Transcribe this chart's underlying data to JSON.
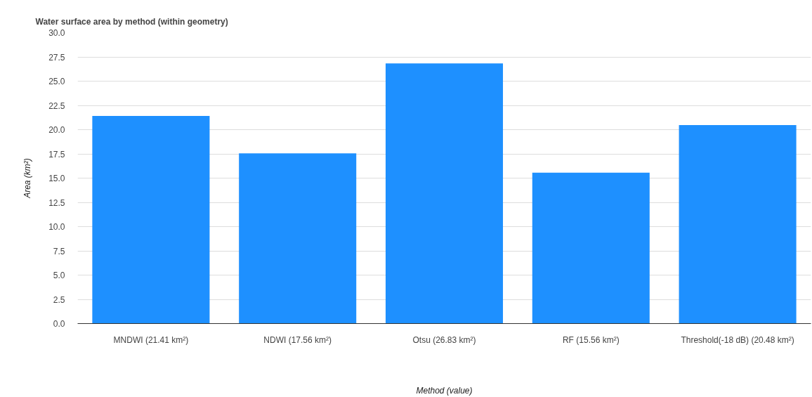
{
  "chart_data": {
    "type": "bar",
    "title": "Water surface area by method (within geometry)",
    "xlabel": "Method (value)",
    "ylabel": "Area (km²)",
    "categories": [
      "MNDWI (21.41 km²)",
      "NDWI (17.56 km²)",
      "Otsu (26.83 km²)",
      "RF (15.56 km²)",
      "Threshold(-18 dB) (20.48 km²)"
    ],
    "values": [
      21.41,
      17.56,
      26.83,
      15.56,
      20.48
    ],
    "color": "#1e90ff",
    "ylim": [
      0,
      30
    ],
    "yticks": [
      {
        "value": 0,
        "label": "0.0"
      },
      {
        "value": 2.5,
        "label": "2.5"
      },
      {
        "value": 5,
        "label": "5.0"
      },
      {
        "value": 7.5,
        "label": "7.5"
      },
      {
        "value": 10,
        "label": "10.0"
      },
      {
        "value": 12.5,
        "label": "12.5"
      },
      {
        "value": 15,
        "label": "15.0"
      },
      {
        "value": 17.5,
        "label": "17.5"
      },
      {
        "value": 20,
        "label": "20.0"
      },
      {
        "value": 22.5,
        "label": "22.5"
      },
      {
        "value": 25,
        "label": "25.0"
      },
      {
        "value": 27.5,
        "label": "27.5"
      },
      {
        "value": 30,
        "label": "30.0"
      }
    ],
    "grid": "y"
  }
}
